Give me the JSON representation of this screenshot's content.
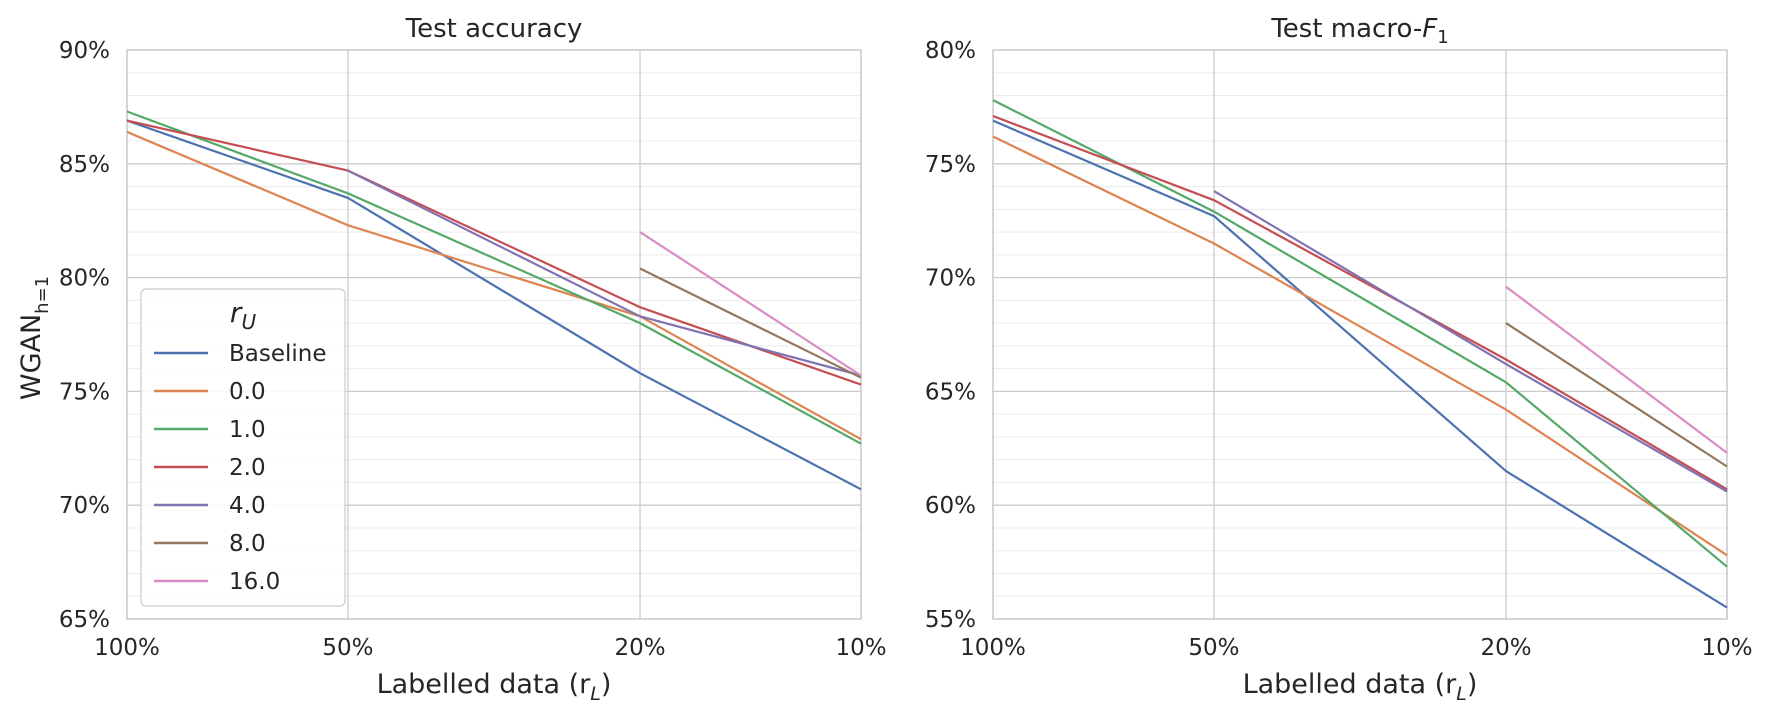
{
  "figure": {
    "ylabel_left": "WGAN",
    "ylabel_left_sub": "h=1"
  },
  "legend": {
    "title": "r",
    "title_sub": "U",
    "location": "lower-left of left panel"
  },
  "colors": {
    "Baseline": "#4c72b0",
    "0.0": "#dd8452",
    "1.0": "#55a868",
    "2.0": "#c44e52",
    "4.0": "#8172b3",
    "8.0": "#937860",
    "16.0": "#da8bc3"
  },
  "chart_data": [
    {
      "type": "line",
      "title": "Test accuracy",
      "title_sub": "",
      "xlabel": "Labelled data (r",
      "xlabel_sub": "L",
      "xlabel_end": ")",
      "x": [
        100,
        50,
        20,
        10
      ],
      "x_ticklabels": [
        "100%",
        "50%",
        "20%",
        "10%"
      ],
      "x_scale": "log-reversed",
      "ylim": [
        65,
        90
      ],
      "y_ticks": [
        65,
        70,
        75,
        80,
        85,
        90
      ],
      "y_ticklabels": [
        "65%",
        "70%",
        "75%",
        "80%",
        "85%",
        "90%"
      ],
      "grid": true,
      "series": [
        {
          "name": "Baseline",
          "values": [
            86.9,
            83.5,
            75.8,
            70.7
          ]
        },
        {
          "name": "0.0",
          "values": [
            86.4,
            82.3,
            78.3,
            72.9
          ]
        },
        {
          "name": "1.0",
          "values": [
            87.3,
            83.7,
            78.0,
            72.7
          ]
        },
        {
          "name": "2.0",
          "values": [
            86.9,
            84.7,
            78.7,
            75.3
          ]
        },
        {
          "name": "4.0",
          "values": [
            null,
            84.7,
            78.3,
            75.7
          ]
        },
        {
          "name": "8.0",
          "values": [
            null,
            null,
            80.4,
            75.6
          ]
        },
        {
          "name": "16.0",
          "values": [
            null,
            null,
            82.0,
            75.7
          ]
        }
      ]
    },
    {
      "type": "line",
      "title": "Test macro-",
      "title_sub": "F1",
      "xlabel": "Labelled data (r",
      "xlabel_sub": "L",
      "xlabel_end": ")",
      "x": [
        100,
        50,
        20,
        10
      ],
      "x_ticklabels": [
        "100%",
        "50%",
        "20%",
        "10%"
      ],
      "x_scale": "log-reversed",
      "ylim": [
        55,
        80
      ],
      "y_ticks": [
        55,
        60,
        65,
        70,
        75,
        80
      ],
      "y_ticklabels": [
        "55%",
        "60%",
        "65%",
        "70%",
        "75%",
        "80%"
      ],
      "grid": true,
      "series": [
        {
          "name": "Baseline",
          "values": [
            76.9,
            72.7,
            61.5,
            55.5
          ]
        },
        {
          "name": "0.0",
          "values": [
            76.2,
            71.5,
            64.2,
            57.8
          ]
        },
        {
          "name": "1.0",
          "values": [
            77.8,
            72.9,
            65.4,
            57.3
          ]
        },
        {
          "name": "2.0",
          "values": [
            77.1,
            73.4,
            66.4,
            60.7
          ]
        },
        {
          "name": "4.0",
          "values": [
            null,
            73.8,
            66.2,
            60.6
          ]
        },
        {
          "name": "8.0",
          "values": [
            null,
            null,
            68.0,
            61.7
          ]
        },
        {
          "name": "16.0",
          "values": [
            null,
            null,
            69.6,
            62.3
          ]
        }
      ]
    }
  ]
}
